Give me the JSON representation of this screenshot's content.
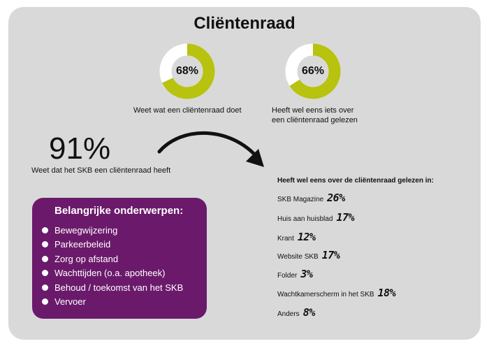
{
  "title": "Cliëntenraad",
  "colors": {
    "accent": "#b7c30e",
    "ring_bg": "#ffffff",
    "panel": "#6b1a6b",
    "card": "#d9d9d9"
  },
  "donut1": {
    "value": 68,
    "label": "68%",
    "caption": "Weet wat een cliëntenraad doet"
  },
  "donut2": {
    "value": 66,
    "label": "66%",
    "caption_line1": "Heeft wel eens iets over",
    "caption_line2": "een cliëntenraad gelezen"
  },
  "skb": {
    "value": "91%",
    "caption": "Weet dat het SKB een cliëntenraad heeft"
  },
  "topics": {
    "title": "Belangrijke onderwerpen:",
    "items": [
      "Bewegwijzering",
      "Parkeerbeleid",
      "Zorg op afstand",
      "Wachttijden (o.a. apotheek)",
      "Behoud / toekomst van het SKB",
      "Vervoer"
    ]
  },
  "sources": {
    "title": "Heeft wel eens over de cliëntenraad gelezen in:",
    "items": [
      {
        "name": "SKB Magazine",
        "pct": "26%"
      },
      {
        "name": "Huis aan huisblad",
        "pct": "17%"
      },
      {
        "name": "Krant",
        "pct": "12%"
      },
      {
        "name": "Website SKB",
        "pct": "17%"
      },
      {
        "name": "Folder",
        "pct": "3%"
      },
      {
        "name": "Wachtkamerscherm in het SKB",
        "pct": "18%"
      },
      {
        "name": "Anders",
        "pct": "8%"
      }
    ]
  }
}
